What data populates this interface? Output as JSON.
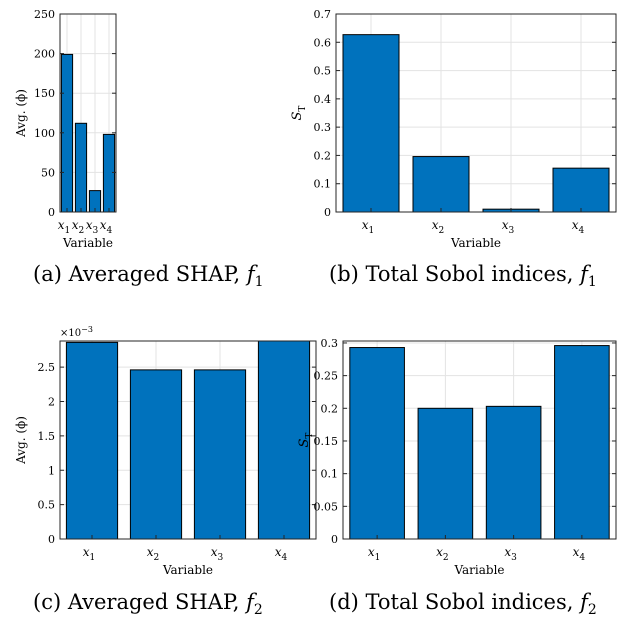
{
  "chart_data": [
    {
      "type": "bar",
      "categories": [
        "x1",
        "x2",
        "x3",
        "x4"
      ],
      "values": [
        199,
        112,
        27,
        98
      ],
      "ylabel": "Avg. (ϕ)",
      "xlabel": "Variable",
      "ylim": [
        0,
        250
      ],
      "yticks": [
        0,
        50,
        100,
        150,
        200,
        250
      ],
      "ytick_labels": [
        "0",
        "50",
        "100",
        "150",
        "200",
        "250"
      ],
      "grid": true,
      "color": "#0072BD",
      "caption": "(a) Averaged SHAP, f1",
      "caption_parts": {
        "prefix": "(a) Averaged SHAP, ",
        "var": "f",
        "sub": "1"
      }
    },
    {
      "type": "bar",
      "categories": [
        "x1",
        "x2",
        "x3",
        "x4"
      ],
      "values": [
        0.627,
        0.196,
        0.01,
        0.155
      ],
      "ylabel": "ST",
      "xlabel": "Variable",
      "ylim": [
        0,
        0.7
      ],
      "yticks": [
        0,
        0.1,
        0.2,
        0.3,
        0.4,
        0.5,
        0.6,
        0.7
      ],
      "ytick_labels": [
        "0",
        "0.1",
        "0.2",
        "0.3",
        "0.4",
        "0.5",
        "0.6",
        "0.7"
      ],
      "grid": true,
      "color": "#0072BD",
      "caption": "(b) Total Sobol indices, f1",
      "caption_parts": {
        "prefix": "(b) Total Sobol indices, ",
        "var": "f",
        "sub": "1"
      }
    },
    {
      "type": "bar",
      "categories": [
        "x1",
        "x2",
        "x3",
        "x4"
      ],
      "values": [
        2.86,
        2.46,
        2.46,
        2.88
      ],
      "ylabel": "Avg. (ϕ)",
      "xlabel": "Variable",
      "ylim": [
        0,
        2.88
      ],
      "yticks": [
        0,
        0.5,
        1,
        1.5,
        2,
        2.5
      ],
      "ytick_labels": [
        "0",
        "0.5",
        "1",
        "1.5",
        "2",
        "2.5"
      ],
      "exponent_label": "×10−3",
      "grid": true,
      "color": "#0072BD",
      "caption": "(c) Averaged SHAP, f2",
      "caption_parts": {
        "prefix": "(c) Averaged SHAP, ",
        "var": "f",
        "sub": "2"
      }
    },
    {
      "type": "bar",
      "categories": [
        "x1",
        "x2",
        "x3",
        "x4"
      ],
      "values": [
        0.293,
        0.2,
        0.203,
        0.296
      ],
      "ylabel": "ST",
      "xlabel": "Variable",
      "ylim": [
        0,
        0.303
      ],
      "yticks": [
        0,
        0.05,
        0.1,
        0.15,
        0.2,
        0.25,
        0.3
      ],
      "ytick_labels": [
        "0",
        "0.05",
        "0.1",
        "0.15",
        "0.2",
        "0.25",
        "0.3"
      ],
      "grid": true,
      "color": "#0072BD",
      "caption": "(d) Total Sobol indices, f2",
      "caption_parts": {
        "prefix": "(d) Total Sobol indices, ",
        "var": "f",
        "sub": "2"
      }
    }
  ]
}
